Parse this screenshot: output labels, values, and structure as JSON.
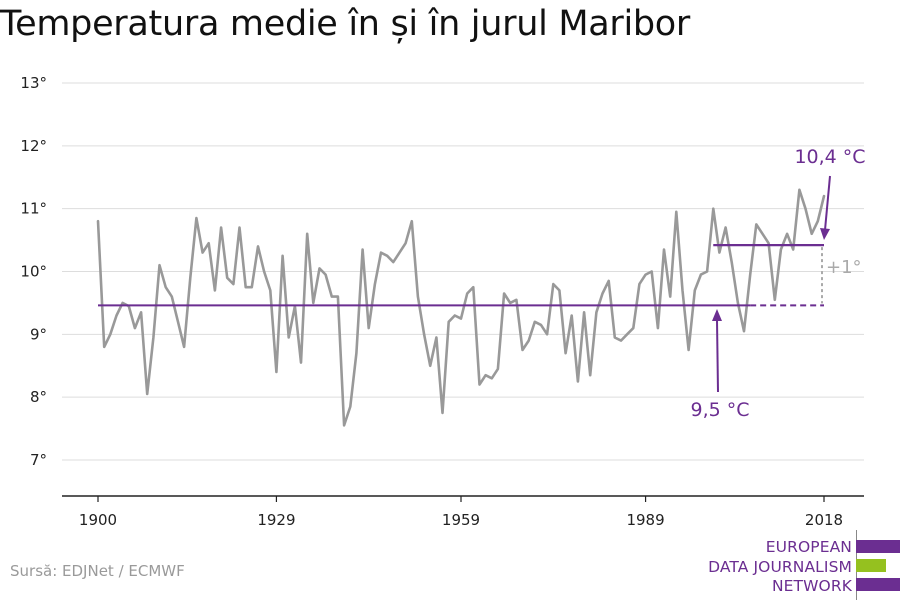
{
  "title": "Temperatura medie în și în jurul Maribor",
  "source": "Sursă: EDJNet / ECMWF",
  "logo": {
    "lines": [
      "EUROPEAN",
      "DATA JOURNALISM",
      "NETWORK"
    ],
    "colors": {
      "purple": "#6b2e91",
      "green": "#95c11f"
    }
  },
  "chart_data": {
    "type": "line",
    "title": "Temperatura medie în și în jurul Maribor",
    "xlabel": "",
    "ylabel": "",
    "xlim": [
      1900,
      2018
    ],
    "ylim": [
      7,
      13
    ],
    "x_ticks": [
      1900,
      1929,
      1959,
      1989,
      2018
    ],
    "y_ticks": [
      7,
      8,
      9,
      10,
      11,
      12,
      13
    ],
    "y_tick_labels": [
      "7°",
      "8°",
      "9°",
      "10°",
      "11°",
      "12°",
      "13°"
    ],
    "grid": true,
    "series": [
      {
        "color": "#999999",
        "x": [
          1900,
          1901,
          1902,
          1903,
          1904,
          1905,
          1906,
          1907,
          1908,
          1909,
          1910,
          1911,
          1912,
          1913,
          1914,
          1915,
          1916,
          1917,
          1918,
          1919,
          1920,
          1921,
          1922,
          1923,
          1924,
          1925,
          1926,
          1927,
          1928,
          1929,
          1930,
          1931,
          1932,
          1933,
          1934,
          1935,
          1936,
          1937,
          1938,
          1939,
          1940,
          1941,
          1942,
          1943,
          1944,
          1945,
          1946,
          1947,
          1948,
          1949,
          1950,
          1951,
          1952,
          1953,
          1954,
          1955,
          1956,
          1957,
          1958,
          1959,
          1960,
          1961,
          1962,
          1963,
          1964,
          1965,
          1966,
          1967,
          1968,
          1969,
          1970,
          1971,
          1972,
          1973,
          1974,
          1975,
          1976,
          1977,
          1978,
          1979,
          1980,
          1981,
          1982,
          1983,
          1984,
          1985,
          1986,
          1987,
          1988,
          1989,
          1990,
          1991,
          1992,
          1993,
          1994,
          1995,
          1996,
          1997,
          1998,
          1999,
          2000,
          2001,
          2002,
          2003,
          2004,
          2005,
          2006,
          2007,
          2008,
          2009,
          2010,
          2011,
          2012,
          2013,
          2014,
          2015,
          2016,
          2017,
          2018
        ],
        "values": [
          10.8,
          8.8,
          9.0,
          9.3,
          9.5,
          9.45,
          9.1,
          9.35,
          8.05,
          8.95,
          10.1,
          9.75,
          9.6,
          9.2,
          8.8,
          9.9,
          10.85,
          10.3,
          10.45,
          9.7,
          10.7,
          9.9,
          9.8,
          10.7,
          9.75,
          9.75,
          10.4,
          10.0,
          9.7,
          8.4,
          10.25,
          8.95,
          9.45,
          8.55,
          10.6,
          9.5,
          10.05,
          9.95,
          9.6,
          9.6,
          7.55,
          7.85,
          8.7,
          10.35,
          9.1,
          9.8,
          10.3,
          10.25,
          10.15,
          10.3,
          10.45,
          10.8,
          9.6,
          9.0,
          8.5,
          8.95,
          7.75,
          9.2,
          9.3,
          9.25,
          9.65,
          9.75,
          8.2,
          8.35,
          8.3,
          8.45,
          9.65,
          9.5,
          9.55,
          8.75,
          8.9,
          9.2,
          9.15,
          9.0,
          9.8,
          9.7,
          8.7,
          9.3,
          8.25,
          9.35,
          8.35,
          9.35,
          9.65,
          9.85,
          8.95,
          8.9,
          9.0,
          9.1,
          9.8,
          9.95,
          10.0,
          9.1,
          10.35,
          9.6,
          10.95,
          9.7,
          8.75,
          9.7,
          9.95,
          10.0,
          11.0,
          10.3,
          10.7,
          10.15,
          9.5,
          9.05,
          9.95,
          10.75,
          10.6,
          10.45,
          9.55,
          10.35,
          10.6,
          10.35,
          11.3,
          11.0,
          10.6,
          10.8,
          11.2
        ]
      }
    ],
    "reference_lines": [
      {
        "label": "9,5 °C",
        "value": 9.46,
        "x_start": 1900,
        "x_end": 2018,
        "solid_until": 2006,
        "color": "#6b2e91"
      },
      {
        "label": "10,4 °C",
        "value": 10.42,
        "x_start": 2000,
        "x_end": 2018,
        "color": "#6b2e91"
      }
    ],
    "annotations": [
      {
        "text": "+1°",
        "color": "#aaaaaa"
      }
    ]
  }
}
